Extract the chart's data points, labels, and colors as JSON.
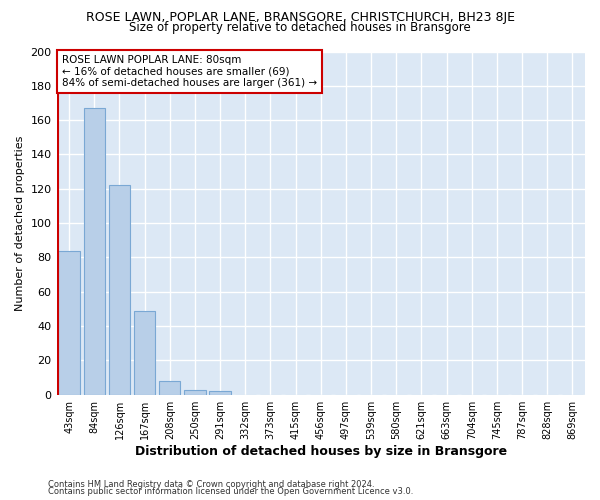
{
  "title": "ROSE LAWN, POPLAR LANE, BRANSGORE, CHRISTCHURCH, BH23 8JE",
  "subtitle": "Size of property relative to detached houses in Bransgore",
  "xlabel": "Distribution of detached houses by size in Bransgore",
  "ylabel": "Number of detached properties",
  "bar_labels": [
    "43sqm",
    "84sqm",
    "126sqm",
    "167sqm",
    "208sqm",
    "250sqm",
    "291sqm",
    "332sqm",
    "373sqm",
    "415sqm",
    "456sqm",
    "497sqm",
    "539sqm",
    "580sqm",
    "621sqm",
    "663sqm",
    "704sqm",
    "745sqm",
    "787sqm",
    "828sqm",
    "869sqm"
  ],
  "bar_values": [
    84,
    167,
    122,
    49,
    8,
    3,
    2,
    0,
    0,
    0,
    0,
    0,
    0,
    0,
    0,
    0,
    0,
    0,
    0,
    0,
    0
  ],
  "bar_color": "#b8cfe8",
  "bar_edge_color": "#7aa8d4",
  "highlight_color": "#cc0000",
  "annotation_line1": "ROSE LAWN POPLAR LANE: 80sqm",
  "annotation_line2": "← 16% of detached houses are smaller (69)",
  "annotation_line3": "84% of semi-detached houses are larger (361) →",
  "ylim": [
    0,
    200
  ],
  "yticks": [
    0,
    20,
    40,
    60,
    80,
    100,
    120,
    140,
    160,
    180,
    200
  ],
  "fig_bg_color": "#ffffff",
  "plot_bg_color": "#dce8f5",
  "grid_color": "#ffffff",
  "footer1": "Contains HM Land Registry data © Crown copyright and database right 2024.",
  "footer2": "Contains public sector information licensed under the Open Government Licence v3.0."
}
